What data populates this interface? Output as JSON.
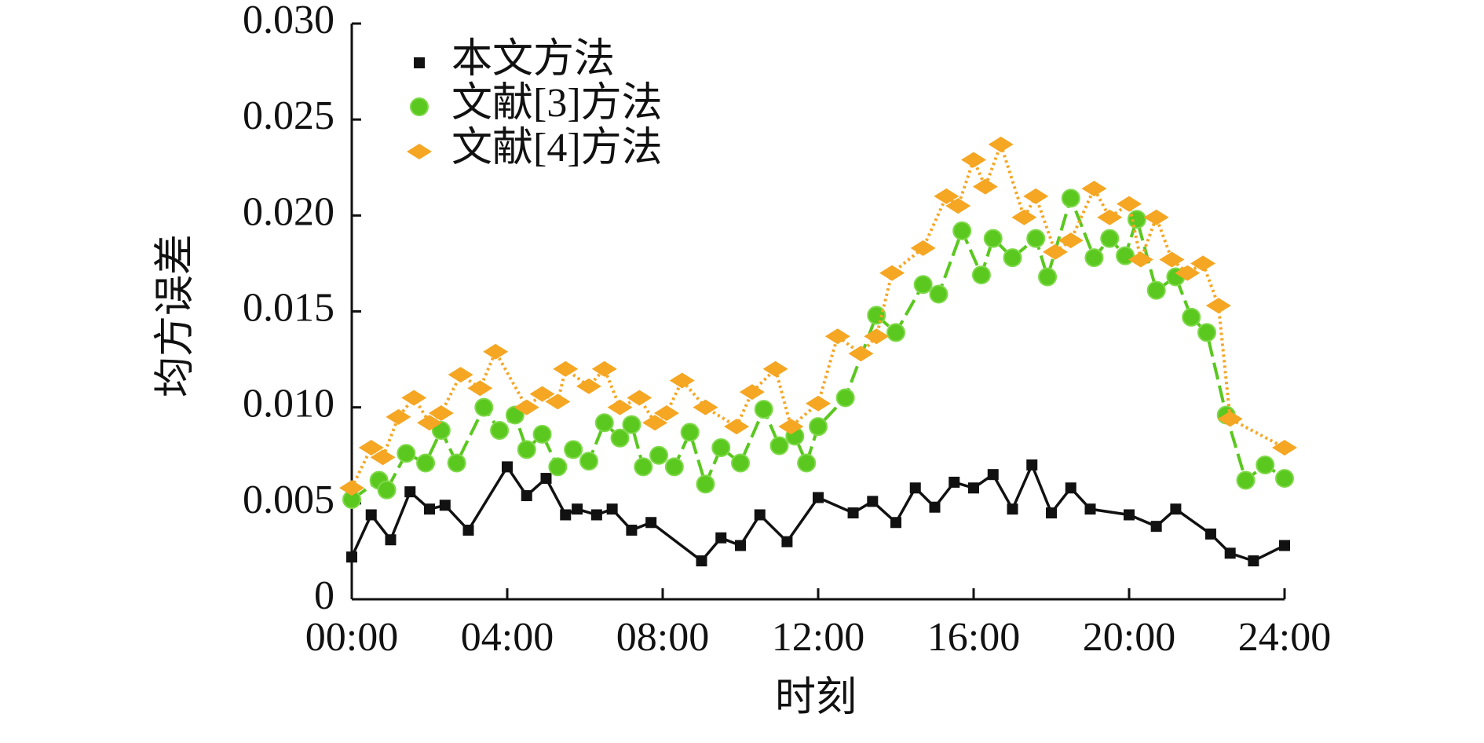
{
  "chart_data": {
    "type": "line",
    "xlabel": "时刻",
    "ylabel": "均方误差",
    "xlim": [
      0,
      24
    ],
    "xticks": [
      {
        "value": 0,
        "label": "00:00"
      },
      {
        "value": 4,
        "label": "04:00"
      },
      {
        "value": 8,
        "label": "08:00"
      },
      {
        "value": 12,
        "label": "12:00"
      },
      {
        "value": 16,
        "label": "16:00"
      },
      {
        "value": 20,
        "label": "20:00"
      },
      {
        "value": 24,
        "label": "24:00"
      }
    ],
    "ylim": [
      0,
      0.03
    ],
    "yticks": [
      0,
      0.005,
      {
        "value": 0.01,
        "label": "0.010"
      },
      0.015,
      {
        "value": 0.02,
        "label": "0.020"
      },
      0.025,
      {
        "value": 0.03,
        "label": "0.030"
      }
    ],
    "legend": "upper left",
    "series": [
      {
        "name": "本文方法",
        "color": "#111111",
        "marker": "square",
        "line": "solid",
        "x": [
          0,
          0.5,
          1,
          1.5,
          2,
          2.4,
          3,
          4,
          4.5,
          5,
          5.5,
          5.8,
          6.3,
          6.7,
          7.2,
          7.7,
          9,
          9.5,
          10,
          10.5,
          11.2,
          12,
          12.9,
          13.4,
          14,
          14.5,
          15,
          15.5,
          16,
          16.5,
          17,
          17.5,
          18,
          18.5,
          19,
          20,
          20.7,
          21.2,
          22.1,
          22.6,
          23.2,
          24
        ],
        "values": [
          0.0022,
          0.0044,
          0.0031,
          0.0056,
          0.0047,
          0.0049,
          0.0036,
          0.0069,
          0.0054,
          0.0063,
          0.0044,
          0.0047,
          0.0044,
          0.0047,
          0.0036,
          0.004,
          0.002,
          0.0032,
          0.0028,
          0.0044,
          0.003,
          0.0053,
          0.0045,
          0.0051,
          0.004,
          0.0058,
          0.0048,
          0.0061,
          0.0058,
          0.0065,
          0.0047,
          0.007,
          0.0045,
          0.0058,
          0.0047,
          0.0044,
          0.0038,
          0.0047,
          0.0034,
          0.0024,
          0.002,
          0.0028
        ]
      },
      {
        "name": "文献[3]方法",
        "color": "#5ac81e",
        "marker": "circle",
        "line": "dashed",
        "x": [
          0,
          0.7,
          0.9,
          1.4,
          1.9,
          2.3,
          2.7,
          3.4,
          3.8,
          4.2,
          4.5,
          4.9,
          5.3,
          5.7,
          6.1,
          6.5,
          6.9,
          7.2,
          7.5,
          7.9,
          8.3,
          8.7,
          9.1,
          9.5,
          10,
          10.6,
          11,
          11.4,
          11.7,
          12,
          12.7,
          13.5,
          14,
          14.7,
          15.1,
          15.7,
          16.2,
          16.5,
          17,
          17.6,
          17.9,
          18.5,
          19.1,
          19.5,
          19.9,
          20.2,
          20.7,
          21.2,
          21.6,
          22,
          22.5,
          23,
          23.5,
          24
        ],
        "values": [
          0.0052,
          0.0062,
          0.0057,
          0.0076,
          0.0071,
          0.0088,
          0.0071,
          0.01,
          0.0088,
          0.0096,
          0.0078,
          0.0086,
          0.0069,
          0.0078,
          0.0072,
          0.0092,
          0.0084,
          0.0091,
          0.0069,
          0.0075,
          0.0069,
          0.0087,
          0.006,
          0.0079,
          0.0071,
          0.0099,
          0.008,
          0.0085,
          0.0071,
          0.009,
          0.0105,
          0.0148,
          0.0139,
          0.0164,
          0.0159,
          0.0192,
          0.0169,
          0.0188,
          0.0178,
          0.0188,
          0.0168,
          0.0209,
          0.0178,
          0.0188,
          0.0179,
          0.0198,
          0.0161,
          0.0168,
          0.0147,
          0.0139,
          0.0096,
          0.0062,
          0.007,
          0.0063
        ]
      },
      {
        "name": "文献[4]方法",
        "color": "#f5a623",
        "marker": "diamond",
        "line": "dotted",
        "x": [
          0,
          0.5,
          0.8,
          1.2,
          1.6,
          2,
          2.3,
          2.8,
          3.3,
          3.7,
          4.5,
          4.9,
          5.3,
          5.5,
          6.1,
          6.5,
          6.9,
          7.4,
          7.8,
          8.1,
          8.5,
          9.1,
          9.9,
          10.3,
          10.9,
          11.3,
          12,
          12.5,
          13.1,
          13.5,
          13.9,
          14.7,
          15.3,
          15.6,
          16,
          16.3,
          16.7,
          17.3,
          17.6,
          18.1,
          18.5,
          19.1,
          19.5,
          20,
          20.3,
          20.7,
          21.1,
          21.5,
          21.9,
          22.3,
          22.6,
          24
        ],
        "values": [
          0.0058,
          0.0079,
          0.0074,
          0.0095,
          0.0105,
          0.0092,
          0.0097,
          0.0117,
          0.011,
          0.0129,
          0.01,
          0.0107,
          0.0103,
          0.012,
          0.0111,
          0.012,
          0.01,
          0.0105,
          0.0092,
          0.0097,
          0.0114,
          0.01,
          0.009,
          0.0108,
          0.012,
          0.009,
          0.0102,
          0.0137,
          0.0128,
          0.0137,
          0.017,
          0.0183,
          0.021,
          0.0205,
          0.0229,
          0.0215,
          0.0237,
          0.0199,
          0.021,
          0.0181,
          0.0187,
          0.0214,
          0.0199,
          0.0206,
          0.0177,
          0.0199,
          0.0177,
          0.017,
          0.0175,
          0.0153,
          0.0094,
          0.0079
        ]
      }
    ]
  }
}
